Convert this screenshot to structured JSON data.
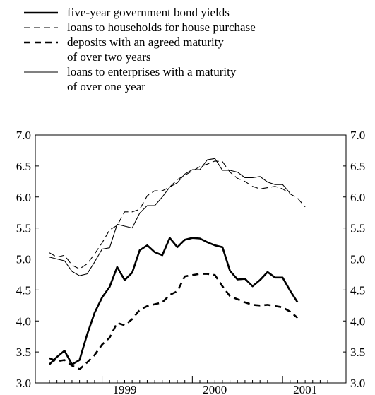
{
  "chart_data": {
    "type": "line",
    "title": "",
    "xlabel": "",
    "ylabel": "",
    "ylim": [
      3.0,
      7.0
    ],
    "yticks": [
      "3.0",
      "3.5",
      "4.0",
      "4.5",
      "5.0",
      "5.5",
      "6.0",
      "6.5",
      "7.0"
    ],
    "x_tick_labels": [
      "1999",
      "2000",
      "2001"
    ],
    "grid": false,
    "legend_position": "top-left",
    "months": [
      "1998-06",
      "1998-07",
      "1998-08",
      "1998-09",
      "1998-10",
      "1998-11",
      "1998-12",
      "1999-01",
      "1999-02",
      "1999-03",
      "1999-04",
      "1999-05",
      "1999-06",
      "1999-07",
      "1999-08",
      "1999-09",
      "1999-10",
      "1999-11",
      "1999-12",
      "2000-01",
      "2000-02",
      "2000-03",
      "2000-04",
      "2000-05",
      "2000-06",
      "2000-07",
      "2000-08",
      "2000-09",
      "2000-10",
      "2000-11",
      "2000-12",
      "2001-01",
      "2001-02",
      "2001-03",
      "2001-04",
      "2001-05",
      "2001-06",
      "2001-07"
    ],
    "series": [
      {
        "name": "five-year government bond yields",
        "label_lines": [
          "five-year government bond yields"
        ],
        "style": "thick-solid",
        "values": [
          3.3,
          3.42,
          3.52,
          3.3,
          3.37,
          3.78,
          4.13,
          4.38,
          4.55,
          4.87,
          4.66,
          4.78,
          5.14,
          5.22,
          5.11,
          5.06,
          5.34,
          5.19,
          5.31,
          5.34,
          5.33,
          5.27,
          5.22,
          5.19,
          4.81,
          4.67,
          4.68,
          4.56,
          4.66,
          4.79,
          4.7,
          4.7,
          4.49,
          4.3,
          null,
          null,
          null,
          null
        ]
      },
      {
        "name": "loans to households for house purchase",
        "label_lines": [
          "loans to households for house purchase"
        ],
        "style": "thin-dashed",
        "values": [
          5.1,
          5.03,
          5.06,
          4.9,
          4.84,
          4.92,
          5.08,
          5.26,
          5.47,
          5.54,
          5.76,
          5.76,
          5.8,
          6.02,
          6.1,
          6.1,
          6.16,
          6.28,
          6.35,
          6.42,
          6.49,
          6.53,
          6.58,
          6.57,
          6.4,
          6.3,
          6.25,
          6.17,
          6.13,
          6.15,
          6.17,
          6.13,
          6.05,
          5.98,
          5.84,
          null,
          null,
          null
        ]
      },
      {
        "name": "deposits with an agreed maturity of over two years",
        "label_lines": [
          "deposits with an agreed maturity",
          "of over two years"
        ],
        "style": "thick-dashed",
        "values": [
          3.4,
          3.35,
          3.37,
          3.28,
          3.22,
          3.33,
          3.45,
          3.62,
          3.73,
          3.97,
          3.93,
          4.03,
          4.18,
          4.24,
          4.27,
          4.3,
          4.42,
          4.48,
          4.72,
          4.74,
          4.76,
          4.76,
          4.74,
          4.56,
          4.4,
          4.35,
          4.3,
          4.26,
          4.25,
          4.26,
          4.24,
          4.22,
          4.15,
          4.05,
          null,
          null,
          null,
          null
        ]
      },
      {
        "name": "loans to enterprises with a maturity of over one year",
        "label_lines": [
          "loans to enterprises with a maturity",
          "of over one year"
        ],
        "style": "thin-solid",
        "values": [
          5.03,
          5.0,
          4.97,
          4.8,
          4.73,
          4.76,
          4.95,
          5.16,
          5.18,
          5.56,
          5.53,
          5.5,
          5.74,
          5.86,
          5.86,
          6.0,
          6.16,
          6.23,
          6.37,
          6.44,
          6.44,
          6.6,
          6.62,
          6.43,
          6.43,
          6.4,
          6.31,
          6.31,
          6.33,
          6.24,
          6.2,
          6.2,
          6.06,
          null,
          null,
          null,
          null,
          null
        ]
      }
    ]
  }
}
